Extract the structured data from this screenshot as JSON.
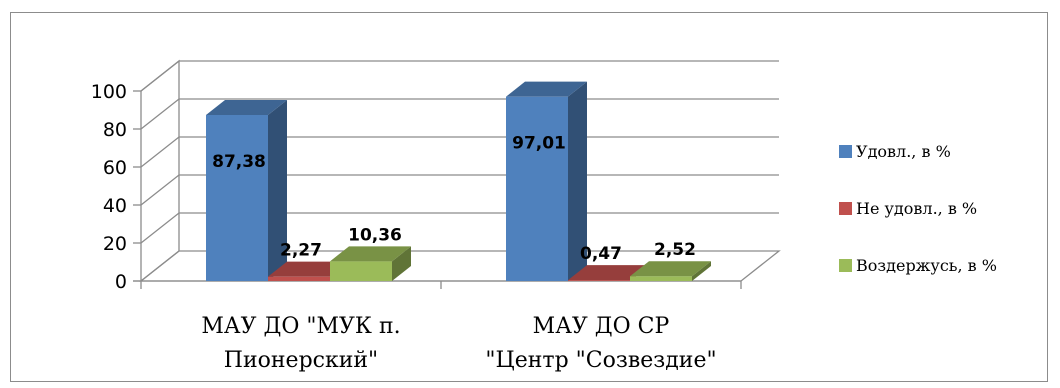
{
  "chart_data": {
    "type": "bar",
    "categories": [
      "МАУ ДО \"МУК п. Пионерский\"",
      "МАУ ДО СР \"Центр \"Созвездие\""
    ],
    "category_lines": [
      [
        "МАУ ДО \"МУК п.",
        "Пионерский\""
      ],
      [
        "МАУ ДО СР",
        "\"Центр \"Созвездие\""
      ]
    ],
    "series": [
      {
        "name": "Удовл., в %",
        "values": [
          87.38,
          97.01
        ],
        "labels": [
          "87,38",
          "97,01"
        ],
        "color": "#4f81bd"
      },
      {
        "name": "Не удовл., в %",
        "values": [
          2.27,
          0.47
        ],
        "labels": [
          "2,27",
          "0,47"
        ],
        "color": "#c0504d"
      },
      {
        "name": "Воздержусь, в %",
        "values": [
          10.36,
          2.52
        ],
        "labels": [
          "10,36",
          "2,52"
        ],
        "color": "#9bbb59"
      }
    ],
    "yticks": [
      "0",
      "20",
      "40",
      "60",
      "80",
      "100"
    ],
    "ylim": [
      0,
      100
    ],
    "grid": true,
    "style": "3d",
    "legend_position": "right"
  }
}
